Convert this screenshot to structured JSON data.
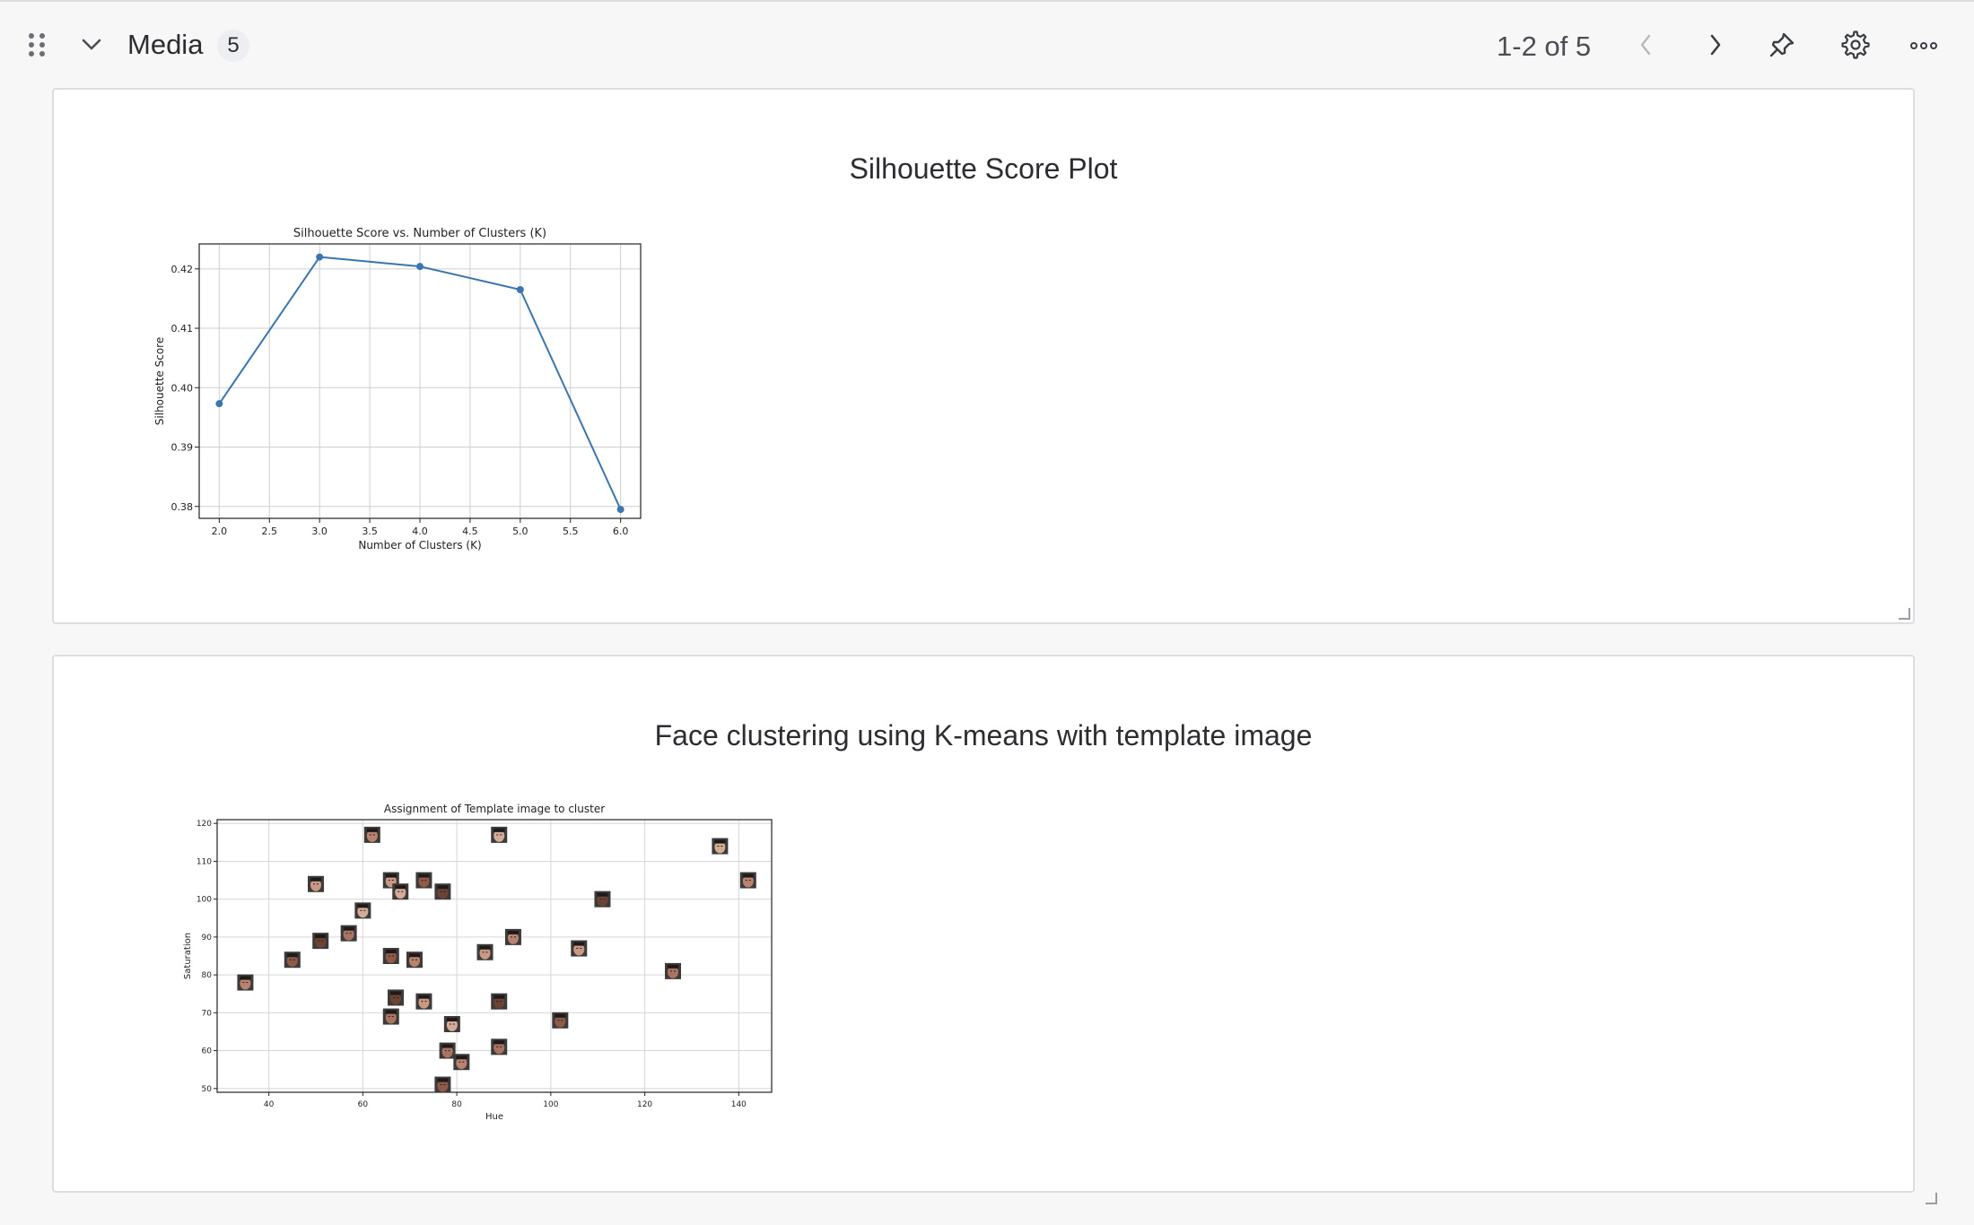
{
  "header": {
    "title": "Media",
    "count": "5",
    "pager": "1-2 of 5",
    "icons": [
      "drag-handle-icon",
      "chevron-down-icon",
      "chevron-left-icon",
      "chevron-right-icon",
      "pin-icon",
      "gear-icon",
      "more-icon"
    ]
  },
  "panels": [
    {
      "title": "Silhouette Score Plot"
    },
    {
      "title": "Face clustering using K-means with template image"
    }
  ],
  "chart_data": [
    {
      "type": "line",
      "title": "Silhouette Score vs. Number of Clusters (K)",
      "xlabel": "Number of Clusters (K)",
      "ylabel": "Silhouette Score",
      "x": [
        2,
        3,
        4,
        5,
        6
      ],
      "series": [
        {
          "values": [
            0.3973,
            0.422,
            0.4204,
            0.4165,
            0.3795
          ]
        }
      ],
      "xlim": [
        1.8,
        6.2
      ],
      "ylim": [
        0.378,
        0.4242
      ],
      "xticks": [
        "2.0",
        "2.5",
        "3.0",
        "3.5",
        "4.0",
        "4.5",
        "5.0",
        "5.5",
        "6.0"
      ],
      "yticks": [
        "0.38",
        "0.39",
        "0.40",
        "0.41",
        "0.42"
      ],
      "grid": true,
      "color": "#3b75af"
    },
    {
      "type": "scatter",
      "title": "Assignment of Template image to cluster",
      "xlabel": "Hue",
      "ylabel": "Saturation",
      "xlim": [
        29,
        147
      ],
      "ylim": [
        49,
        121
      ],
      "xticks": [
        "40",
        "60",
        "80",
        "100",
        "120",
        "140"
      ],
      "yticks": [
        "50",
        "60",
        "70",
        "80",
        "90",
        "100",
        "110",
        "120"
      ],
      "grid": true,
      "marker": "face-thumbnail",
      "points": [
        [
          35,
          78
        ],
        [
          45,
          84
        ],
        [
          50,
          104
        ],
        [
          51,
          89
        ],
        [
          57,
          91
        ],
        [
          60,
          97
        ],
        [
          62,
          117
        ],
        [
          66,
          85
        ],
        [
          66,
          105
        ],
        [
          67,
          74
        ],
        [
          66,
          69
        ],
        [
          68,
          102
        ],
        [
          71,
          84
        ],
        [
          73,
          105
        ],
        [
          73,
          73
        ],
        [
          77,
          102
        ],
        [
          78,
          60
        ],
        [
          79,
          67
        ],
        [
          81,
          57
        ],
        [
          77,
          51
        ],
        [
          86,
          86
        ],
        [
          89,
          73
        ],
        [
          89,
          61
        ],
        [
          89,
          117
        ],
        [
          92,
          90
        ],
        [
          102,
          68
        ],
        [
          106,
          87
        ],
        [
          111,
          100
        ],
        [
          126,
          81
        ],
        [
          136,
          114
        ],
        [
          142,
          105
        ]
      ]
    }
  ]
}
